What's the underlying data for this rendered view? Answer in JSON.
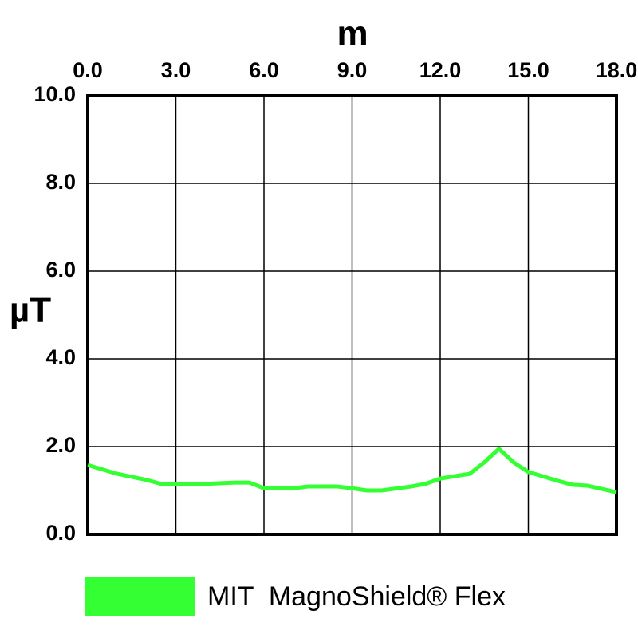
{
  "chart_data": {
    "type": "line",
    "x_label": "m",
    "y_label": "µT",
    "x": [
      0,
      1,
      2,
      2.5,
      3,
      4,
      5,
      5.5,
      6,
      7,
      7.5,
      8.5,
      9,
      9.5,
      10,
      11,
      11.5,
      12,
      13,
      13.5,
      14,
      14.5,
      15,
      16,
      16.5,
      17,
      18
    ],
    "series": [
      {
        "name": "MIT  MagnoShield® Flex",
        "color": "#33ff33",
        "values": [
          1.58,
          1.38,
          1.24,
          1.15,
          1.15,
          1.15,
          1.18,
          1.18,
          1.05,
          1.05,
          1.09,
          1.09,
          1.05,
          1.0,
          1.0,
          1.09,
          1.15,
          1.27,
          1.38,
          1.64,
          1.95,
          1.64,
          1.42,
          1.22,
          1.13,
          1.11,
          0.96
        ]
      }
    ],
    "xlim": [
      0,
      18
    ],
    "xticks": [
      {
        "value": 0,
        "label": "0.0"
      },
      {
        "value": 3,
        "label": "3.0"
      },
      {
        "value": 6,
        "label": "6.0"
      },
      {
        "value": 9,
        "label": "9.0"
      },
      {
        "value": 12,
        "label": "12.0"
      },
      {
        "value": 15,
        "label": "15.0"
      },
      {
        "value": 18,
        "label": "18.0"
      }
    ],
    "ylim": [
      0,
      10
    ],
    "yticks": [
      {
        "value": 0,
        "label": "0.0"
      },
      {
        "value": 2,
        "label": "2.0"
      },
      {
        "value": 4,
        "label": "4.0"
      },
      {
        "value": 6,
        "label": "6.0"
      },
      {
        "value": 8,
        "label": "8.0"
      },
      {
        "value": 10,
        "label": "10.0"
      }
    ],
    "grid": true
  }
}
